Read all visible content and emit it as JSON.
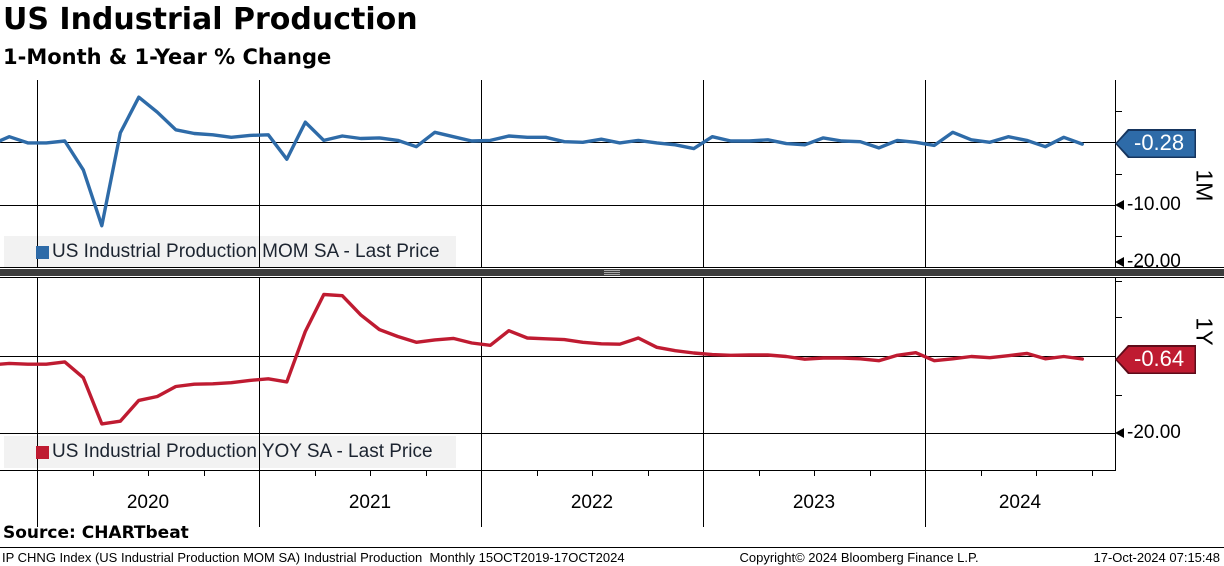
{
  "header": {
    "title": "US Industrial Production",
    "subtitle": "1-Month & 1-Year % Change"
  },
  "top_panel": {
    "legend": "US Industrial Production MOM SA - Last Price",
    "badge": "-0.28",
    "axis_side_label": "1M",
    "y_tick_labels": [
      "-10.00",
      "-20.00"
    ]
  },
  "bottom_panel": {
    "legend": "US Industrial Production YOY SA - Last Price",
    "badge": "-0.64",
    "axis_side_label": "1Y",
    "y_tick_labels": [
      "-20.00"
    ]
  },
  "x_axis": {
    "year_labels": [
      "2020",
      "2021",
      "2022",
      "2023",
      "2024"
    ]
  },
  "footer": {
    "source": "Source: CHARTbeat",
    "info": "IP CHNG Index (US Industrial Production MOM SA) Industrial Production  Monthly 15OCT2019-17OCT2024",
    "copyright": "Copyright© 2024 Bloomberg Finance L.P.",
    "timestamp": "17-Oct-2024 07:15:48"
  },
  "colors": {
    "line_mom": "#2e6ba8",
    "line_yoy": "#bf1b31",
    "badge_mom_border": "#16355e",
    "badge_yoy_border": "#5e0c1a",
    "legend_bg": "#f0f0f0",
    "grid": "#000000",
    "separator_bar": "#3d3d3d"
  },
  "chart_data": {
    "type": "line",
    "title": "US Industrial Production",
    "subtitle": "1-Month & 1-Year % Change",
    "categories": [
      "2019-10",
      "2019-11",
      "2019-12",
      "2020-01",
      "2020-02",
      "2020-03",
      "2020-04",
      "2020-05",
      "2020-06",
      "2020-07",
      "2020-08",
      "2020-09",
      "2020-10",
      "2020-11",
      "2020-12",
      "2021-01",
      "2021-02",
      "2021-03",
      "2021-04",
      "2021-05",
      "2021-06",
      "2021-07",
      "2021-08",
      "2021-09",
      "2021-10",
      "2021-11",
      "2021-12",
      "2022-01",
      "2022-02",
      "2022-03",
      "2022-04",
      "2022-05",
      "2022-06",
      "2022-07",
      "2022-08",
      "2022-09",
      "2022-10",
      "2022-11",
      "2022-12",
      "2023-01",
      "2023-02",
      "2023-03",
      "2023-04",
      "2023-05",
      "2023-06",
      "2023-07",
      "2023-08",
      "2023-09",
      "2023-10",
      "2023-11",
      "2023-12",
      "2024-01",
      "2024-02",
      "2024-03",
      "2024-04",
      "2024-05",
      "2024-06",
      "2024-07",
      "2024-08",
      "2024-09"
    ],
    "series": [
      {
        "name": "US Industrial Production MOM SA - Last Price",
        "panel": "1M",
        "color": "#2e6ba8",
        "last_price": -0.28,
        "values": [
          -0.4,
          0.9,
          -0.1,
          -0.1,
          0.2,
          -4.4,
          -13.3,
          1.5,
          7.2,
          4.8,
          2.0,
          1.4,
          1.2,
          0.8,
          1.1,
          1.2,
          -2.7,
          3.2,
          0.3,
          1.0,
          0.6,
          0.7,
          0.3,
          -0.7,
          1.6,
          0.9,
          0.2,
          0.3,
          1.0,
          0.8,
          0.8,
          0.1,
          0.0,
          0.5,
          -0.1,
          0.3,
          -0.1,
          -0.4,
          -1.0,
          0.9,
          0.2,
          0.2,
          0.4,
          -0.2,
          -0.4,
          0.7,
          0.2,
          0.1,
          -0.9,
          0.3,
          0.0,
          -0.5,
          1.6,
          0.4,
          0.0,
          0.9,
          0.3,
          -0.7,
          0.8,
          -0.28
        ]
      },
      {
        "name": "US Industrial Production YOY SA - Last Price",
        "panel": "1Y",
        "color": "#bf1b31",
        "last_price": -0.64,
        "values": [
          -2.2,
          -1.8,
          -2.0,
          -2.0,
          -1.4,
          -5.5,
          -17.5,
          -16.8,
          -11.4,
          -10.4,
          -7.8,
          -7.2,
          -7.1,
          -6.8,
          -6.2,
          -5.8,
          -6.6,
          6.5,
          16.1,
          15.8,
          10.8,
          7.0,
          5.2,
          3.7,
          4.3,
          4.7,
          3.5,
          2.9,
          6.7,
          4.8,
          4.6,
          4.4,
          3.7,
          3.3,
          3.2,
          4.8,
          2.4,
          1.5,
          0.9,
          0.5,
          0.3,
          0.4,
          0.4,
          0.0,
          -0.7,
          -0.4,
          -0.4,
          -0.6,
          -1.1,
          0.3,
          1.0,
          -1.1,
          -0.6,
          0.0,
          -0.3,
          0.2,
          0.8,
          -0.6,
          0.0,
          -0.64
        ]
      }
    ],
    "panels": [
      {
        "id": "1M",
        "ylim": [
          10,
          -20
        ],
        "labeled_yticks": [
          -10,
          -20
        ],
        "gridlines_y": [
          0,
          -10
        ]
      },
      {
        "id": "1Y",
        "ylim": [
          20,
          -29.6
        ],
        "labeled_yticks": [
          -20
        ],
        "gridlines_y": [
          0,
          -20
        ]
      }
    ],
    "x_year_labels": [
      "2020",
      "2021",
      "2022",
      "2023",
      "2024"
    ],
    "grid": "years-vertical, zero-horizontal",
    "legend_position": "inside-bottom-left-per-panel"
  }
}
